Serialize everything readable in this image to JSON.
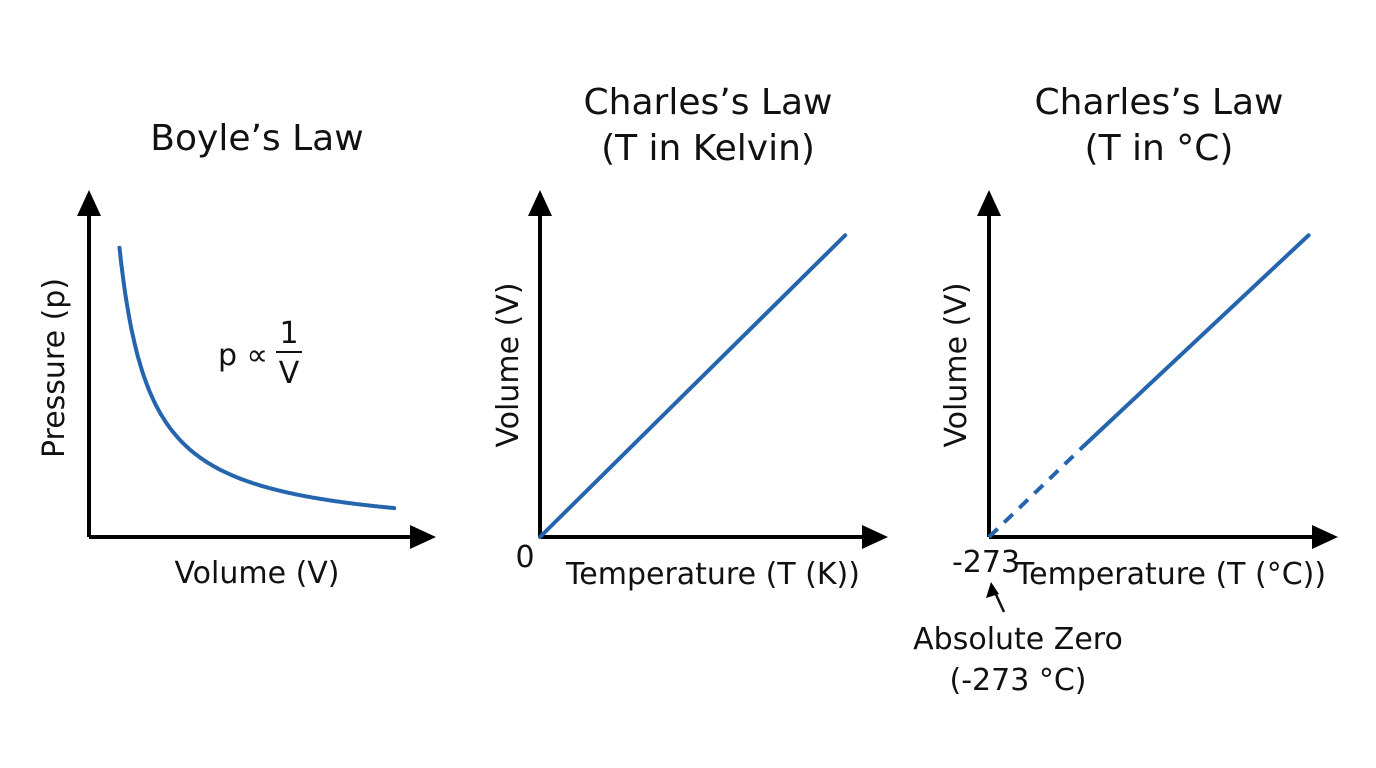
{
  "colors": {
    "series": "#2565ad",
    "axis": "#000000",
    "text": "#111111"
  },
  "chart_data": [
    {
      "type": "line",
      "title": "Boyle’s Law",
      "xlabel": "Volume (V)",
      "ylabel": "Pressure (p)",
      "annotation": {
        "prefix": "p ∝",
        "numerator": "1",
        "denominator": "V"
      },
      "grid": false,
      "relation": "inverse proportion",
      "x": [
        1,
        1.25,
        1.5,
        2,
        2.5,
        3,
        4,
        5,
        6,
        7,
        8,
        9,
        10
      ],
      "y": [
        10,
        8,
        6.67,
        5,
        4,
        3.33,
        2.5,
        2,
        1.67,
        1.43,
        1.25,
        1.11,
        1
      ],
      "xlim": [
        0,
        11.5
      ],
      "ylim": [
        0,
        12
      ]
    },
    {
      "type": "line",
      "title": "Charles’s Law",
      "subtitle": "(T in Kelvin)",
      "xlabel": "Temperature (T (K))",
      "ylabel": "Volume (V)",
      "origin_label": "0",
      "grid": false,
      "relation": "direct proportion",
      "x": [
        0,
        100
      ],
      "y": [
        0,
        100
      ],
      "xlim": [
        0,
        115
      ],
      "ylim": [
        0,
        115
      ]
    },
    {
      "type": "line",
      "title": "Charles’s Law",
      "subtitle": "(T in °C)",
      "xlabel": "Temperature (T (°C))",
      "ylabel": "Volume (V)",
      "origin_label": "-273",
      "grid": false,
      "series": [
        {
          "style": "dashed",
          "x": [
            -273,
            -240
          ],
          "y": [
            0,
            30
          ]
        },
        {
          "style": "solid",
          "x": [
            -240,
            -161
          ],
          "y": [
            30,
            100
          ]
        }
      ],
      "xlim": [
        -273,
        -150
      ],
      "ylim": [
        0,
        115
      ],
      "annotation": {
        "line1": "Absolute Zero",
        "line2": "(-273 °C)"
      }
    }
  ]
}
